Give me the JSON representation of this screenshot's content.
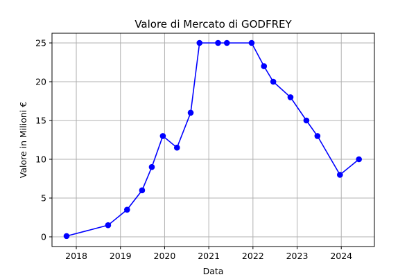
{
  "chart_data": {
    "type": "line",
    "title": "Valore di Mercato di GODFREY",
    "xlabel": "Data",
    "ylabel": "Valore in Milioni €",
    "x_ticks": [
      2018,
      2019,
      2020,
      2021,
      2022,
      2023,
      2024
    ],
    "x_tick_labels": [
      "2018",
      "2019",
      "2020",
      "2021",
      "2022",
      "2023",
      "2024"
    ],
    "y_ticks": [
      0,
      5,
      10,
      15,
      20,
      25
    ],
    "y_tick_labels": [
      "0",
      "5",
      "10",
      "15",
      "20",
      "25"
    ],
    "xlim": [
      2017.45,
      2024.75
    ],
    "ylim": [
      -1.25,
      26.25
    ],
    "grid": true,
    "series": [
      {
        "color": "#0000ff",
        "marker": "circle",
        "x": [
          2017.78,
          2018.72,
          2019.15,
          2019.49,
          2019.71,
          2019.96,
          2020.28,
          2020.59,
          2020.79,
          2021.21,
          2021.41,
          2021.97,
          2022.25,
          2022.46,
          2022.85,
          2023.21,
          2023.46,
          2023.97,
          2024.4
        ],
        "values": [
          0.1,
          1.5,
          3.5,
          6,
          9,
          13,
          11.5,
          16,
          25,
          25,
          25,
          25,
          22,
          20,
          18,
          15,
          13,
          8,
          10
        ]
      }
    ]
  }
}
